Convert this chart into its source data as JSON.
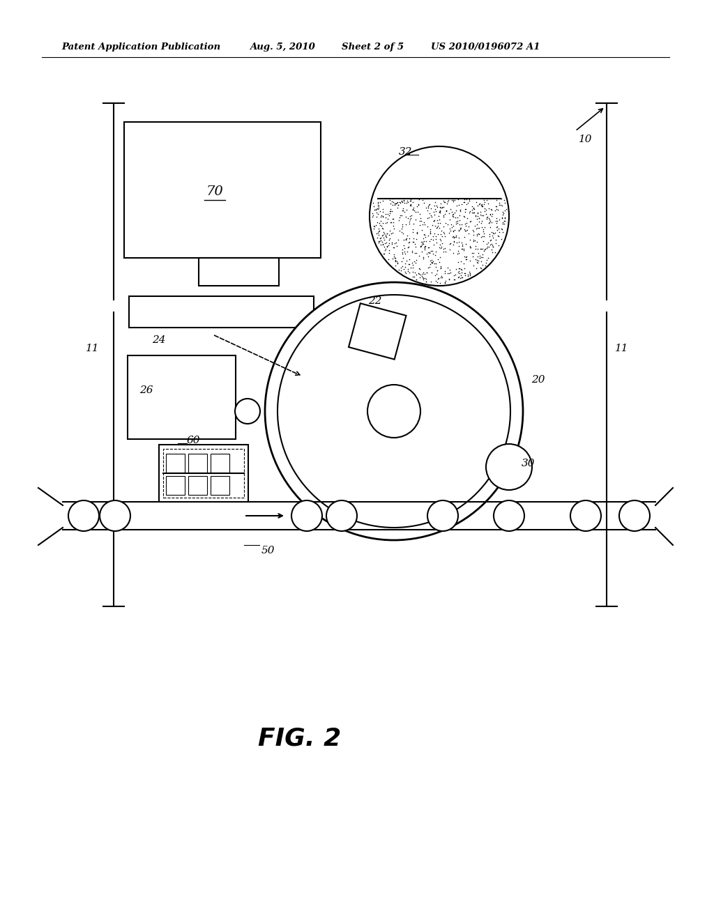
{
  "bg_color": "#ffffff",
  "line_color": "#000000",
  "header_text1": "Patent Application Publication",
  "header_text2": "Aug. 5, 2010",
  "header_text3": "Sheet 2 of 5",
  "header_text4": "US 2010/0196072 A1",
  "fig_label": "FIG. 2"
}
